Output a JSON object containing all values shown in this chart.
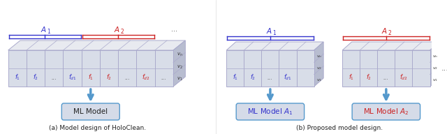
{
  "fig_width": 6.4,
  "fig_height": 1.92,
  "dpi": 100,
  "bg_color": "#ffffff",
  "blue": "#3333cc",
  "red": "#cc2222",
  "arrow_color": "#5599cc",
  "box_face": "#d8dde8",
  "box_edge": "#aaaacc",
  "box3d_top": "#e8eaf0",
  "box3d_side": "#b8bdd0",
  "caption_color": "#222222",
  "caption_a": "(a) Model design of HoloClean.",
  "caption_b": "(b) Proposed model design."
}
